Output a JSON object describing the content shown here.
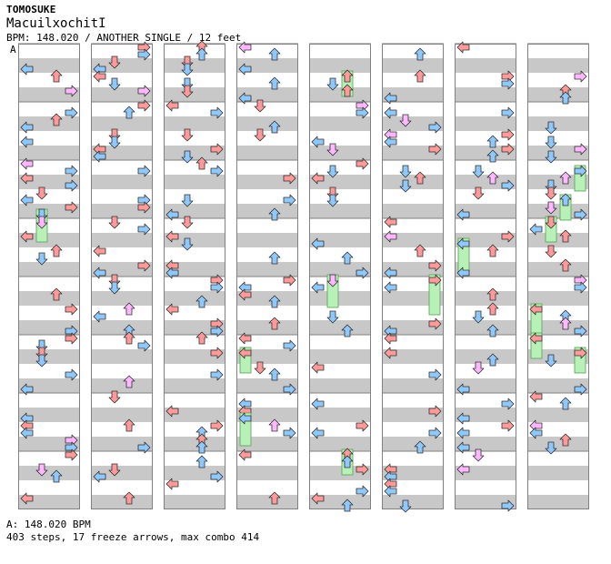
{
  "header": {
    "artist": "TOMOSUKE",
    "title": "MacuilxochitI",
    "info": "BPM: 148.020 / ANOTHER SINGLE / 12 feet",
    "section_label": "A"
  },
  "footer": {
    "bpm_line": "A: 148.020 BPM",
    "stats_line": "403 steps, 17 freeze arrows, max combo 414"
  },
  "chart_meta": {
    "columns": 8,
    "measures_per_column": 8,
    "lanes": [
      "left",
      "down",
      "up",
      "right"
    ],
    "total_measures": 64
  },
  "colors": {
    "stripe_gray": "#c8c8c8",
    "border": "#808080",
    "red_arrow": "#ff9a9a",
    "blue_arrow": "#8ec8ff",
    "pink_arrow": "#ffb8ff",
    "green_freeze": "#b8f0b8",
    "arrow_stroke": "#303030"
  },
  "icons": {
    "left": "left-arrow-icon",
    "down": "down-arrow-icon",
    "up": "up-arrow-icon",
    "right": "right-arrow-icon"
  }
}
